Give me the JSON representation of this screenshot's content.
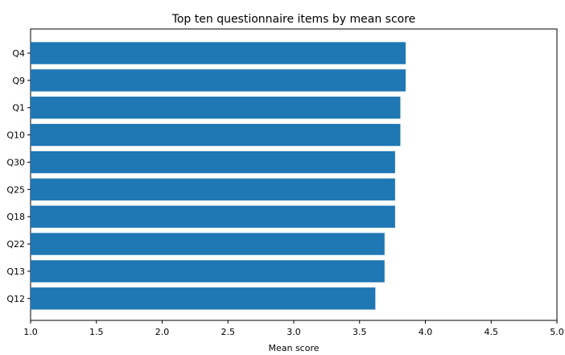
{
  "chart_data": {
    "type": "bar",
    "orientation": "horizontal",
    "title": "Top ten questionnaire items by mean score",
    "xlabel": "Mean score",
    "ylabel": "",
    "categories": [
      "Q4",
      "Q9",
      "Q1",
      "Q10",
      "Q30",
      "Q25",
      "Q18",
      "Q22",
      "Q13",
      "Q12"
    ],
    "values": [
      3.85,
      3.85,
      3.81,
      3.81,
      3.77,
      3.77,
      3.77,
      3.69,
      3.69,
      3.62
    ],
    "xlim": [
      1.0,
      5.0
    ],
    "xticks": [
      "1.0",
      "1.5",
      "2.0",
      "2.5",
      "3.0",
      "3.5",
      "4.0",
      "4.5",
      "5.0"
    ],
    "grid": false,
    "legend": "none",
    "bar_color": "#1f77b4"
  }
}
